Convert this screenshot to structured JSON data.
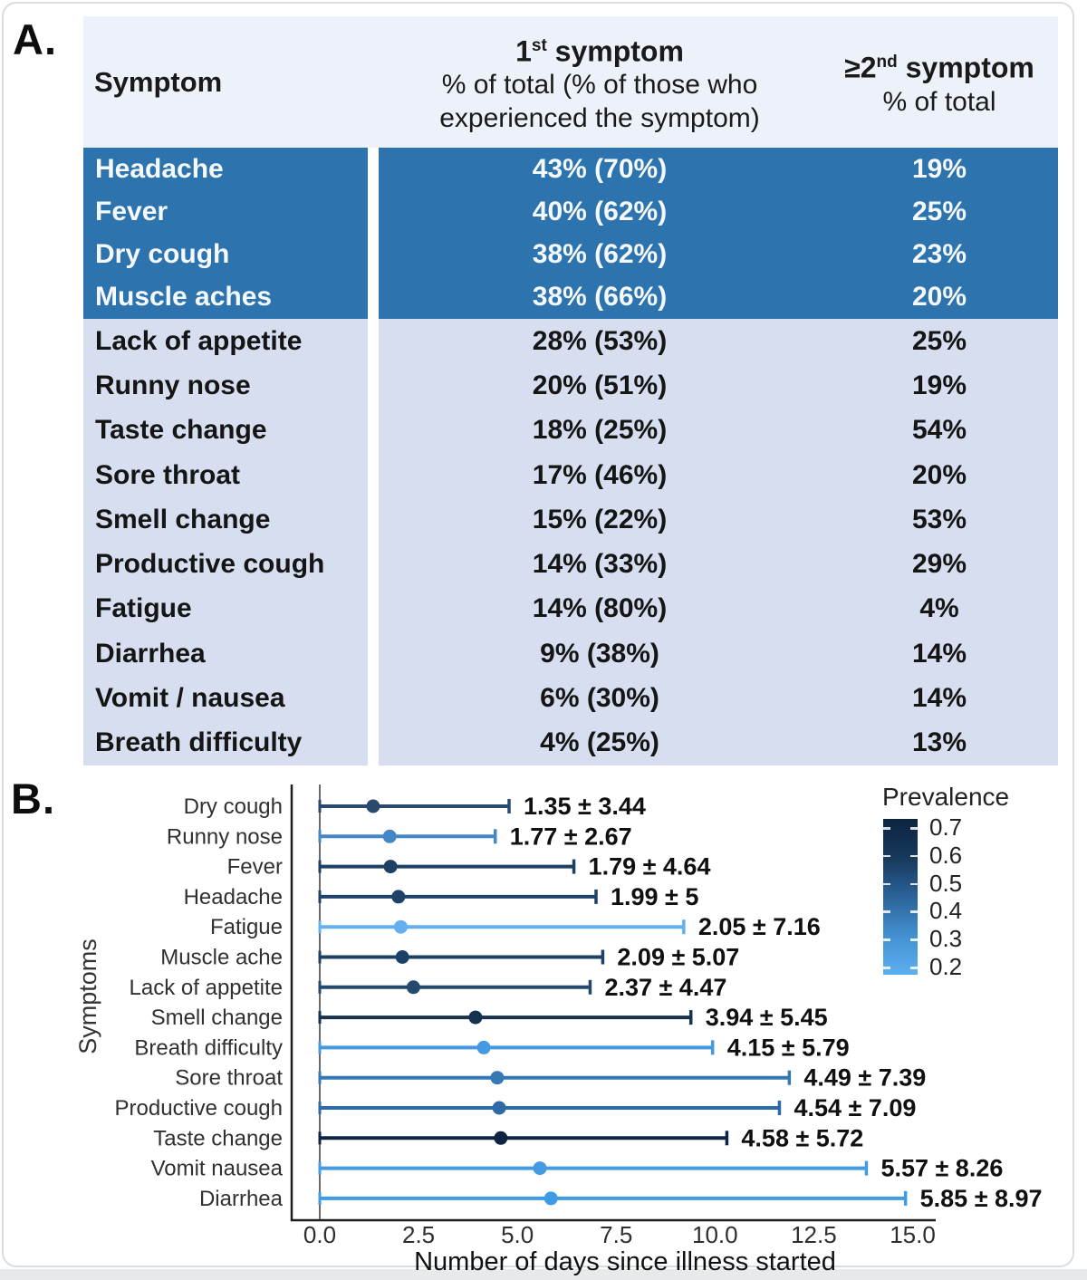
{
  "panel_a": {
    "label": "A.",
    "header": {
      "col1": "Symptom",
      "col2_num": "1",
      "col2_sup": "st",
      "col2_rest": " symptom",
      "col2_line2": "% of total (% of those who",
      "col2_line3": "experienced the symptom)",
      "col3_num": "≥2",
      "col3_sup": "nd",
      "col3_rest": " symptom",
      "col3_line2": "% of total"
    },
    "colors": {
      "highlight_row": "#2d74ae",
      "light_row": "#d6deef",
      "header_bg": "#edf2fa",
      "highlight_text": "#f5f9fd",
      "light_text": "#151515"
    }
  },
  "panel_b": {
    "label": "B."
  },
  "chart_data": [
    {
      "type": "table",
      "columns": [
        "Symptom",
        "1st symptom % of total (% of those who experienced the symptom)",
        "≥2nd symptom % of total"
      ],
      "rows": [
        {
          "symptom": "Headache",
          "first": "43% (70%)",
          "second": "19%",
          "highlight": true
        },
        {
          "symptom": "Fever",
          "first": "40% (62%)",
          "second": "25%",
          "highlight": true
        },
        {
          "symptom": "Dry cough",
          "first": "38% (62%)",
          "second": "23%",
          "highlight": true
        },
        {
          "symptom": "Muscle aches",
          "first": "38% (66%)",
          "second": "20%",
          "highlight": true
        },
        {
          "symptom": "Lack of appetite",
          "first": "28% (53%)",
          "second": "25%",
          "highlight": false
        },
        {
          "symptom": "Runny nose",
          "first": "20% (51%)",
          "second": "19%",
          "highlight": false
        },
        {
          "symptom": "Taste change",
          "first": "18% (25%)",
          "second": "54%",
          "highlight": false
        },
        {
          "symptom": "Sore throat",
          "first": "17% (46%)",
          "second": "20%",
          "highlight": false
        },
        {
          "symptom": "Smell change",
          "first": "15% (22%)",
          "second": "53%",
          "highlight": false
        },
        {
          "symptom": "Productive cough",
          "first": "14% (33%)",
          "second": "29%",
          "highlight": false
        },
        {
          "symptom": "Fatigue",
          "first": "14% (80%)",
          "second": "4%",
          "highlight": false
        },
        {
          "symptom": "Diarrhea",
          "first": "9% (38%)",
          "second": "14%",
          "highlight": false
        },
        {
          "symptom": "Vomit / nausea",
          "first": "6% (30%)",
          "second": "14%",
          "highlight": false
        },
        {
          "symptom": "Breath difficulty",
          "first": "4% (25%)",
          "second": "13%",
          "highlight": false
        }
      ]
    },
    {
      "type": "scatter",
      "xlabel": "Number of days since illness started",
      "ylabel": "Symptoms",
      "xlim": [
        0,
        15
      ],
      "x_ticks": [
        "0.0",
        "2.5",
        "5.0",
        "7.5",
        "10.0",
        "12.5",
        "15.0"
      ],
      "error_bars": "from 0 to mean + sd",
      "legend": {
        "title": "Prevalence",
        "ticks": [
          "0.7",
          "0.6",
          "0.5",
          "0.4",
          "0.3",
          "0.2"
        ],
        "gradient_top": "#0d2440",
        "gradient_bottom": "#5cb0f2",
        "position": "top-right"
      },
      "points": [
        {
          "symptom": "Dry cough",
          "mean": 1.35,
          "sd": 3.44,
          "label": "1.35 ± 3.44",
          "color": "#294a6d"
        },
        {
          "symptom": "Runny nose",
          "mean": 1.77,
          "sd": 2.67,
          "label": "1.77 ± 2.67",
          "color": "#4387c6"
        },
        {
          "symptom": "Fever",
          "mean": 1.79,
          "sd": 4.64,
          "label": "1.79 ± 4.64",
          "color": "#1d4066"
        },
        {
          "symptom": "Headache",
          "mean": 1.99,
          "sd": 5,
          "label": "1.99 ± 5",
          "color": "#1f4368"
        },
        {
          "symptom": "Fatigue",
          "mean": 2.05,
          "sd": 7.16,
          "label": "2.05 ± 7.16",
          "color": "#64b0ee"
        },
        {
          "symptom": "Muscle ache",
          "mean": 2.09,
          "sd": 5.07,
          "label": "2.09 ± 5.07",
          "color": "#1d4166"
        },
        {
          "symptom": "Lack of appetite",
          "mean": 2.37,
          "sd": 4.47,
          "label": "2.37 ± 4.47",
          "color": "#234a6e"
        },
        {
          "symptom": "Smell change",
          "mean": 3.94,
          "sd": 5.45,
          "label": "3.94 ± 5.45",
          "color": "#15324f"
        },
        {
          "symptom": "Breath difficulty",
          "mean": 4.15,
          "sd": 5.79,
          "label": "4.15 ± 5.79",
          "color": "#4599e0"
        },
        {
          "symptom": "Sore throat",
          "mean": 4.49,
          "sd": 7.39,
          "label": "4.49 ± 7.39",
          "color": "#3478b5"
        },
        {
          "symptom": "Productive cough",
          "mean": 4.54,
          "sd": 7.09,
          "label": "4.54 ± 7.09",
          "color": "#2c6ba8"
        },
        {
          "symptom": "Taste change",
          "mean": 4.58,
          "sd": 5.72,
          "label": "4.58 ± 5.72",
          "color": "#0e2440"
        },
        {
          "symptom": "Vomit nausea",
          "mean": 5.57,
          "sd": 8.26,
          "label": "5.57 ± 8.26",
          "color": "#459ae4"
        },
        {
          "symptom": "Diarrhea",
          "mean": 5.85,
          "sd": 8.97,
          "label": "5.85 ± 8.97",
          "color": "#3f9be4"
        }
      ]
    }
  ]
}
